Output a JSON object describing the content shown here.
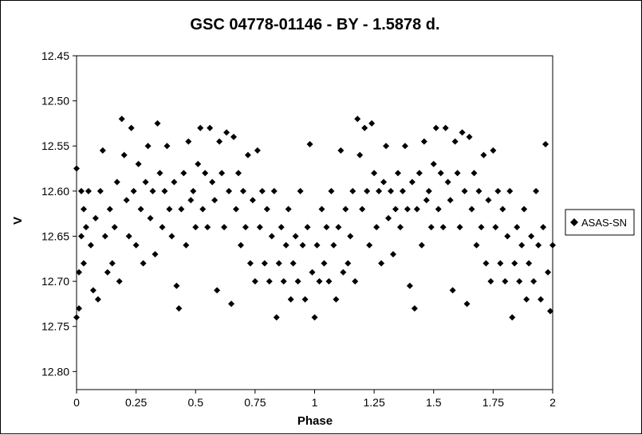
{
  "chart_data": {
    "type": "scatter",
    "title": "GSC 04778-01146 - BY - 1.5878 d.",
    "xlabel": "Phase",
    "ylabel": "V",
    "xlim": [
      0,
      2
    ],
    "ylim": [
      12.45,
      12.82
    ],
    "y_reversed": true,
    "x_ticks": [
      "0",
      "0.25",
      "0.5",
      "0.75",
      "1",
      "1.25",
      "1.5",
      "1.75",
      "2"
    ],
    "x_tick_values": [
      0,
      0.25,
      0.5,
      0.75,
      1,
      1.25,
      1.5,
      1.75,
      2
    ],
    "y_ticks": [
      "12.45",
      "12.50",
      "12.55",
      "12.60",
      "12.65",
      "12.70",
      "12.75",
      "12.80"
    ],
    "y_tick_values": [
      12.45,
      12.5,
      12.55,
      12.6,
      12.65,
      12.7,
      12.75,
      12.8
    ],
    "grid": false,
    "legend_position": "right",
    "marker": "diamond",
    "marker_color": "#000000",
    "series": [
      {
        "name": "ASAS-SN",
        "points": [
          [
            0.0,
            12.575
          ],
          [
            0.0,
            12.74
          ],
          [
            0.01,
            12.73
          ],
          [
            0.01,
            12.69
          ],
          [
            0.02,
            12.6
          ],
          [
            0.02,
            12.65
          ],
          [
            0.03,
            12.62
          ],
          [
            0.03,
            12.68
          ],
          [
            0.04,
            12.64
          ],
          [
            0.05,
            12.6
          ],
          [
            0.06,
            12.66
          ],
          [
            0.07,
            12.71
          ],
          [
            0.08,
            12.63
          ],
          [
            0.09,
            12.72
          ],
          [
            0.1,
            12.6
          ],
          [
            0.11,
            12.555
          ],
          [
            0.12,
            12.65
          ],
          [
            0.13,
            12.69
          ],
          [
            0.14,
            12.62
          ],
          [
            0.15,
            12.68
          ],
          [
            0.16,
            12.64
          ],
          [
            0.17,
            12.59
          ],
          [
            0.18,
            12.7
          ],
          [
            0.19,
            12.52
          ],
          [
            0.2,
            12.56
          ],
          [
            0.21,
            12.61
          ],
          [
            0.22,
            12.65
          ],
          [
            0.23,
            12.53
          ],
          [
            0.24,
            12.6
          ],
          [
            0.25,
            12.66
          ],
          [
            0.26,
            12.57
          ],
          [
            0.27,
            12.62
          ],
          [
            0.28,
            12.68
          ],
          [
            0.29,
            12.59
          ],
          [
            0.3,
            12.55
          ],
          [
            0.31,
            12.63
          ],
          [
            0.32,
            12.6
          ],
          [
            0.33,
            12.67
          ],
          [
            0.34,
            12.525
          ],
          [
            0.35,
            12.58
          ],
          [
            0.36,
            12.64
          ],
          [
            0.37,
            12.6
          ],
          [
            0.38,
            12.55
          ],
          [
            0.39,
            12.62
          ],
          [
            0.4,
            12.65
          ],
          [
            0.41,
            12.59
          ],
          [
            0.42,
            12.705
          ],
          [
            0.43,
            12.73
          ],
          [
            0.44,
            12.62
          ],
          [
            0.45,
            12.58
          ],
          [
            0.46,
            12.66
          ],
          [
            0.47,
            12.545
          ],
          [
            0.48,
            12.61
          ],
          [
            0.49,
            12.6
          ],
          [
            0.5,
            12.64
          ],
          [
            0.51,
            12.57
          ],
          [
            0.52,
            12.53
          ],
          [
            0.53,
            12.62
          ],
          [
            0.54,
            12.58
          ],
          [
            0.55,
            12.64
          ],
          [
            0.56,
            12.53
          ],
          [
            0.57,
            12.59
          ],
          [
            0.58,
            12.61
          ],
          [
            0.59,
            12.71
          ],
          [
            0.6,
            12.545
          ],
          [
            0.61,
            12.58
          ],
          [
            0.62,
            12.64
          ],
          [
            0.63,
            12.535
          ],
          [
            0.64,
            12.6
          ],
          [
            0.65,
            12.725
          ],
          [
            0.66,
            12.54
          ],
          [
            0.67,
            12.62
          ],
          [
            0.68,
            12.58
          ],
          [
            0.69,
            12.66
          ],
          [
            0.7,
            12.6
          ],
          [
            0.71,
            12.64
          ],
          [
            0.72,
            12.56
          ],
          [
            0.73,
            12.68
          ],
          [
            0.74,
            12.61
          ],
          [
            0.75,
            12.7
          ],
          [
            0.76,
            12.555
          ],
          [
            0.77,
            12.64
          ],
          [
            0.78,
            12.6
          ],
          [
            0.79,
            12.68
          ],
          [
            0.8,
            12.62
          ],
          [
            0.81,
            12.7
          ],
          [
            0.82,
            12.65
          ],
          [
            0.83,
            12.6
          ],
          [
            0.84,
            12.74
          ],
          [
            0.85,
            12.68
          ],
          [
            0.86,
            12.64
          ],
          [
            0.87,
            12.7
          ],
          [
            0.88,
            12.66
          ],
          [
            0.89,
            12.62
          ],
          [
            0.9,
            12.72
          ],
          [
            0.91,
            12.68
          ],
          [
            0.92,
            12.65
          ],
          [
            0.93,
            12.7
          ],
          [
            0.94,
            12.6
          ],
          [
            0.95,
            12.66
          ],
          [
            0.96,
            12.72
          ],
          [
            0.97,
            12.64
          ],
          [
            0.98,
            12.548
          ],
          [
            0.99,
            12.69
          ],
          [
            1.0,
            12.74
          ],
          [
            1.01,
            12.66
          ],
          [
            1.02,
            12.7
          ],
          [
            1.03,
            12.62
          ],
          [
            1.04,
            12.68
          ],
          [
            1.05,
            12.64
          ],
          [
            1.06,
            12.7
          ],
          [
            1.07,
            12.6
          ],
          [
            1.08,
            12.66
          ],
          [
            1.09,
            12.72
          ],
          [
            1.1,
            12.64
          ],
          [
            1.11,
            12.555
          ],
          [
            1.12,
            12.69
          ],
          [
            1.13,
            12.62
          ],
          [
            1.14,
            12.68
          ],
          [
            1.15,
            12.65
          ],
          [
            1.16,
            12.6
          ],
          [
            1.17,
            12.7
          ],
          [
            1.18,
            12.52
          ],
          [
            1.19,
            12.56
          ],
          [
            1.2,
            12.62
          ],
          [
            1.21,
            12.53
          ],
          [
            1.22,
            12.6
          ],
          [
            1.23,
            12.66
          ],
          [
            1.24,
            12.525
          ],
          [
            1.25,
            12.58
          ],
          [
            1.26,
            12.64
          ],
          [
            1.27,
            12.6
          ],
          [
            1.28,
            12.68
          ],
          [
            1.29,
            12.59
          ],
          [
            1.3,
            12.55
          ],
          [
            1.31,
            12.63
          ],
          [
            1.32,
            12.6
          ],
          [
            1.33,
            12.67
          ],
          [
            1.34,
            12.62
          ],
          [
            1.35,
            12.58
          ],
          [
            1.36,
            12.64
          ],
          [
            1.37,
            12.6
          ],
          [
            1.38,
            12.55
          ],
          [
            1.39,
            12.62
          ],
          [
            1.4,
            12.705
          ],
          [
            1.41,
            12.59
          ],
          [
            1.42,
            12.73
          ],
          [
            1.43,
            12.62
          ],
          [
            1.44,
            12.58
          ],
          [
            1.45,
            12.66
          ],
          [
            1.46,
            12.545
          ],
          [
            1.47,
            12.61
          ],
          [
            1.48,
            12.6
          ],
          [
            1.49,
            12.64
          ],
          [
            1.5,
            12.57
          ],
          [
            1.51,
            12.53
          ],
          [
            1.52,
            12.62
          ],
          [
            1.53,
            12.58
          ],
          [
            1.54,
            12.64
          ],
          [
            1.55,
            12.53
          ],
          [
            1.56,
            12.59
          ],
          [
            1.57,
            12.61
          ],
          [
            1.58,
            12.71
          ],
          [
            1.59,
            12.545
          ],
          [
            1.6,
            12.58
          ],
          [
            1.61,
            12.64
          ],
          [
            1.62,
            12.535
          ],
          [
            1.63,
            12.6
          ],
          [
            1.64,
            12.725
          ],
          [
            1.65,
            12.54
          ],
          [
            1.66,
            12.62
          ],
          [
            1.67,
            12.58
          ],
          [
            1.68,
            12.66
          ],
          [
            1.69,
            12.6
          ],
          [
            1.7,
            12.64
          ],
          [
            1.71,
            12.56
          ],
          [
            1.72,
            12.68
          ],
          [
            1.73,
            12.61
          ],
          [
            1.74,
            12.7
          ],
          [
            1.75,
            12.555
          ],
          [
            1.76,
            12.64
          ],
          [
            1.77,
            12.6
          ],
          [
            1.78,
            12.68
          ],
          [
            1.79,
            12.62
          ],
          [
            1.8,
            12.7
          ],
          [
            1.81,
            12.65
          ],
          [
            1.82,
            12.6
          ],
          [
            1.83,
            12.74
          ],
          [
            1.84,
            12.68
          ],
          [
            1.85,
            12.64
          ],
          [
            1.86,
            12.7
          ],
          [
            1.87,
            12.66
          ],
          [
            1.88,
            12.62
          ],
          [
            1.89,
            12.72
          ],
          [
            1.9,
            12.68
          ],
          [
            1.91,
            12.65
          ],
          [
            1.92,
            12.7
          ],
          [
            1.93,
            12.6
          ],
          [
            1.94,
            12.66
          ],
          [
            1.95,
            12.72
          ],
          [
            1.96,
            12.64
          ],
          [
            1.97,
            12.548
          ],
          [
            1.98,
            12.69
          ],
          [
            1.99,
            12.733
          ],
          [
            2.0,
            12.66
          ]
        ]
      }
    ]
  }
}
